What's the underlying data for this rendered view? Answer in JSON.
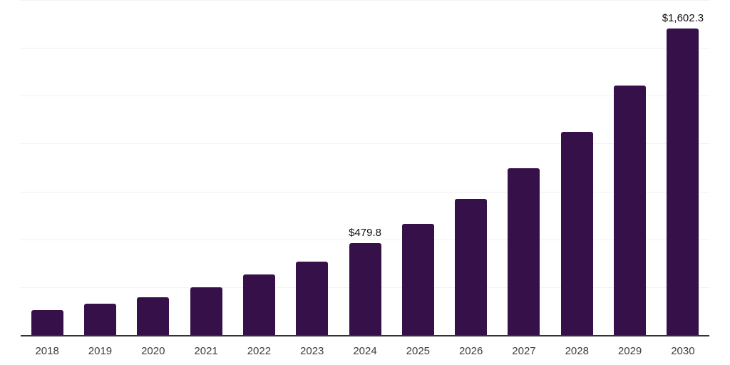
{
  "chart_data": {
    "type": "bar",
    "title": "",
    "xlabel": "",
    "ylabel": "",
    "categories": [
      "2018",
      "2019",
      "2020",
      "2021",
      "2022",
      "2023",
      "2024",
      "2025",
      "2026",
      "2027",
      "2028",
      "2029",
      "2030"
    ],
    "values": [
      131,
      163,
      199,
      250,
      315,
      384,
      479.8,
      580,
      710,
      871,
      1063,
      1304,
      1602.3
    ],
    "value_labels": [
      "",
      "",
      "",
      "",
      "",
      "",
      "$479.8",
      "",
      "",
      "",
      "",
      "",
      "$1,602.3"
    ],
    "ylim": [
      0,
      1750
    ],
    "gridline_step": 250,
    "grid": true,
    "legend": false,
    "colors": {
      "bar": "#351049",
      "gridline": "#f1f1f3",
      "axis_line": "#333333",
      "value_label_text": "#111111",
      "tick_text": "#3d3d3d",
      "background": "#ffffff"
    }
  }
}
